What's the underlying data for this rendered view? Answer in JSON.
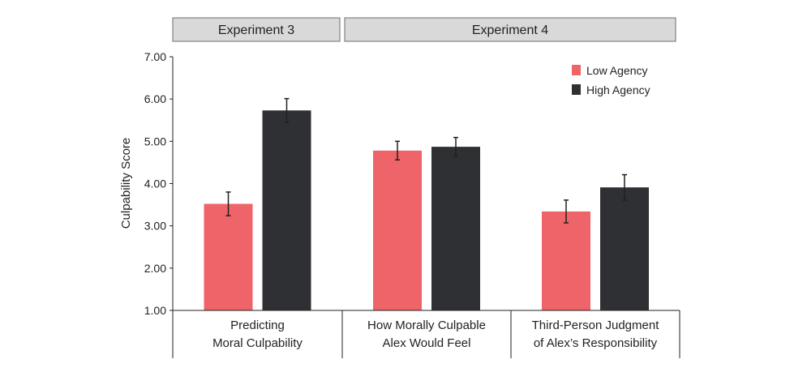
{
  "chart_data": {
    "type": "bar",
    "ylabel": "Culpability Score",
    "ylim": [
      1,
      7
    ],
    "yticks": [
      "1.00",
      "2.00",
      "3.00",
      "4.00",
      "5.00",
      "6.00",
      "7.00"
    ],
    "ytick_values": [
      1,
      2,
      3,
      4,
      5,
      6,
      7
    ],
    "legend_position": "top-right",
    "grid": false,
    "panels": [
      {
        "label": "Experiment 3",
        "categories": [
          0
        ]
      },
      {
        "label": "Experiment 4",
        "categories": [
          1,
          2
        ]
      }
    ],
    "categories": [
      [
        "Predicting",
        "Moral Culpability"
      ],
      [
        "How Morally Culpable",
        "Alex Would Feel"
      ],
      [
        "Third-Person Judgment",
        "of Alex’s Responsibility"
      ]
    ],
    "series": [
      {
        "name": "Low Agency",
        "color": "#ef6468",
        "values": [
          3.52,
          4.78,
          3.34
        ],
        "error": [
          0.28,
          0.22,
          0.27
        ]
      },
      {
        "name": "High Agency",
        "color": "#2f3033",
        "values": [
          5.73,
          4.87,
          3.91
        ],
        "error": [
          0.28,
          0.22,
          0.3
        ]
      }
    ]
  }
}
